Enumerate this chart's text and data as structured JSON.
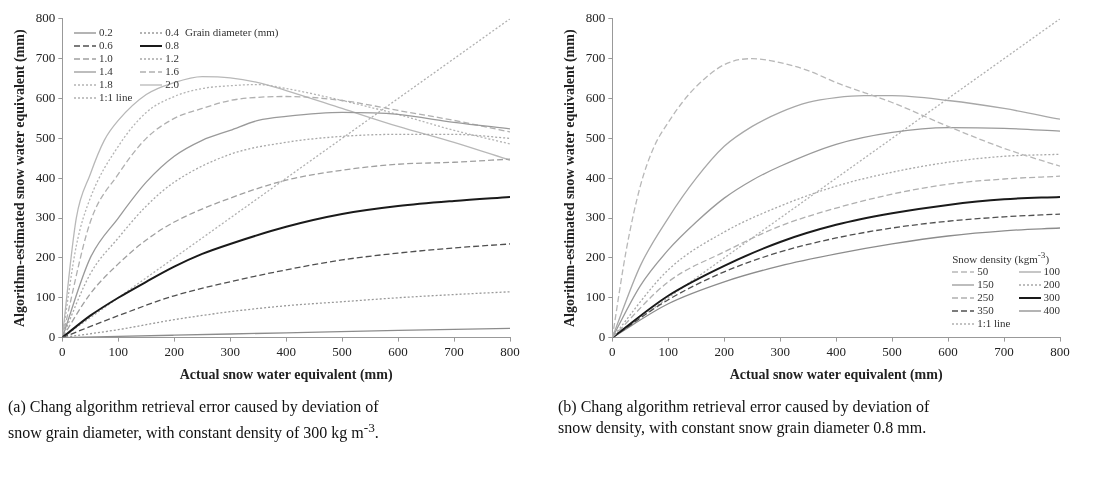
{
  "chart_data": [
    {
      "type": "line",
      "xlabel": "Actual snow water equivalent (mm)",
      "ylabel": "Algorithm-estimated snow water equivalent (mm)",
      "legend_title": "Grain diameter (mm)",
      "legend": "top left",
      "grid": false,
      "marker": "none",
      "xlim": [
        0,
        800
      ],
      "xticks": [
        0,
        100,
        200,
        300,
        400,
        500,
        600,
        700,
        800
      ],
      "ylim": [
        0,
        800
      ],
      "yticks": [
        0,
        100,
        200,
        300,
        400,
        500,
        600,
        700,
        800
      ],
      "annotations": [
        "(a) Chang algorithm retrieval error caused by deviation of snow grain diameter, with constant density of 300 kg m$^{-3}$."
      ],
      "series": [
        {
          "name": "0.2",
          "color": "#8c8c8c",
          "line_style": "solid",
          "x": [
            0,
            100,
            200,
            400,
            600,
            800
          ],
          "values": [
            0,
            3,
            6,
            12,
            18,
            23
          ]
        },
        {
          "name": "0.4",
          "color": "#9a9a9a",
          "line_style": "dotted",
          "x": [
            0,
            100,
            200,
            300,
            400,
            500,
            600,
            700,
            800
          ],
          "values": [
            0,
            20,
            45,
            65,
            80,
            90,
            100,
            108,
            115
          ]
        },
        {
          "name": "0.6",
          "color": "#505050",
          "line_style": "dashed",
          "x": [
            0,
            100,
            200,
            300,
            400,
            500,
            600,
            700,
            800
          ],
          "values": [
            0,
            55,
            105,
            140,
            170,
            195,
            212,
            225,
            235
          ]
        },
        {
          "name": "0.8",
          "color": "#1a1a1a",
          "line_style": "solid",
          "x": [
            0,
            50,
            100,
            150,
            200,
            250,
            300,
            400,
            500,
            600,
            700,
            800
          ],
          "values": [
            0,
            55,
            100,
            140,
            178,
            210,
            235,
            278,
            310,
            330,
            343,
            353
          ]
        },
        {
          "name": "1.0",
          "color": "#a0a0a0",
          "line_style": "dashed",
          "x": [
            0,
            50,
            100,
            150,
            200,
            300,
            400,
            500,
            600,
            700,
            800
          ],
          "values": [
            0,
            110,
            185,
            245,
            290,
            350,
            395,
            420,
            435,
            440,
            448
          ]
        },
        {
          "name": "1.2",
          "color": "#a8a8a8",
          "line_style": "dotted",
          "x": [
            0,
            50,
            100,
            150,
            200,
            300,
            400,
            500,
            600,
            700,
            800
          ],
          "values": [
            0,
            160,
            250,
            330,
            390,
            460,
            490,
            505,
            510,
            510,
            500
          ]
        },
        {
          "name": "1.4",
          "color": "#9a9a9a",
          "line_style": "solid",
          "x": [
            0,
            50,
            100,
            150,
            200,
            250,
            300,
            350,
            400,
            500,
            600,
            700,
            800
          ],
          "values": [
            0,
            200,
            300,
            390,
            455,
            495,
            520,
            545,
            555,
            565,
            560,
            540,
            524
          ]
        },
        {
          "name": "1.6",
          "color": "#b0b0b0",
          "line_style": "dashed",
          "x": [
            0,
            50,
            100,
            150,
            200,
            250,
            300,
            350,
            400,
            500,
            600,
            700,
            800
          ],
          "values": [
            0,
            290,
            410,
            500,
            550,
            575,
            595,
            603,
            605,
            595,
            570,
            545,
            516
          ]
        },
        {
          "name": "1.8",
          "color": "#b4b4b4",
          "line_style": "dotted",
          "x": [
            0,
            25,
            50,
            100,
            150,
            200,
            250,
            300,
            350,
            400,
            500,
            600,
            700,
            800
          ],
          "values": [
            0,
            230,
            350,
            480,
            565,
            605,
            625,
            632,
            635,
            625,
            595,
            560,
            520,
            486
          ]
        },
        {
          "name": "2.0",
          "color": "#b8b8b8",
          "line_style": "solid",
          "x": [
            0,
            25,
            50,
            75,
            100,
            150,
            200,
            250,
            300,
            350,
            400,
            500,
            600,
            700,
            800
          ],
          "values": [
            0,
            300,
            410,
            495,
            545,
            610,
            640,
            655,
            652,
            640,
            620,
            575,
            530,
            490,
            445
          ]
        },
        {
          "name": "1:1 line",
          "color": "#b0b0b0",
          "line_style": "dotted",
          "x": [
            0,
            800
          ],
          "values": [
            0,
            800
          ]
        }
      ]
    },
    {
      "type": "line",
      "xlabel": "Actual snow water equivalent (mm)",
      "ylabel": "Algorithm-estimated snow water equivalent (mm)",
      "legend_title": "Snow density (kgm$^{-3}$)",
      "legend": "bottom right",
      "grid": false,
      "marker": "none",
      "xlim": [
        0,
        800
      ],
      "xticks": [
        0,
        100,
        200,
        300,
        400,
        500,
        600,
        700,
        800
      ],
      "ylim": [
        0,
        800
      ],
      "yticks": [
        0,
        100,
        200,
        300,
        400,
        500,
        600,
        700,
        800
      ],
      "annotations": [
        "(b) Chang algorithm retrieval error caused by deviation of snow density, with constant snow grain diameter 0.8 mm."
      ],
      "series": [
        {
          "name": "50",
          "color": "#b8b8b8",
          "line_style": "dashed",
          "x": [
            0,
            25,
            50,
            75,
            100,
            125,
            150,
            200,
            250,
            300,
            350,
            400,
            500,
            600,
            700,
            800
          ],
          "values": [
            0,
            220,
            380,
            480,
            540,
            590,
            630,
            685,
            700,
            690,
            670,
            640,
            590,
            530,
            475,
            430
          ]
        },
        {
          "name": "100",
          "color": "#a8a8a8",
          "line_style": "solid",
          "x": [
            0,
            50,
            100,
            150,
            200,
            250,
            300,
            350,
            400,
            450,
            500,
            600,
            700,
            800
          ],
          "values": [
            0,
            180,
            300,
            400,
            480,
            530,
            565,
            590,
            602,
            607,
            607,
            595,
            575,
            548
          ]
        },
        {
          "name": "150",
          "color": "#9a9a9a",
          "line_style": "solid",
          "x": [
            0,
            50,
            100,
            150,
            200,
            250,
            300,
            400,
            500,
            600,
            700,
            800
          ],
          "values": [
            0,
            130,
            220,
            290,
            350,
            395,
            430,
            485,
            515,
            527,
            525,
            518
          ]
        },
        {
          "name": "200",
          "color": "#a8a8a8",
          "line_style": "dotted",
          "x": [
            0,
            100,
            200,
            300,
            400,
            500,
            600,
            700,
            800
          ],
          "values": [
            0,
            170,
            265,
            330,
            380,
            415,
            440,
            455,
            460
          ]
        },
        {
          "name": "250",
          "color": "#b0b0b0",
          "line_style": "dashed",
          "x": [
            0,
            100,
            200,
            300,
            400,
            500,
            600,
            700,
            800
          ],
          "values": [
            0,
            140,
            215,
            280,
            325,
            360,
            385,
            398,
            405
          ]
        },
        {
          "name": "300",
          "color": "#1a1a1a",
          "line_style": "solid",
          "x": [
            0,
            100,
            200,
            300,
            400,
            500,
            600,
            700,
            800
          ],
          "values": [
            0,
            105,
            180,
            240,
            283,
            312,
            333,
            347,
            353
          ]
        },
        {
          "name": "350",
          "color": "#505050",
          "line_style": "dashed",
          "x": [
            0,
            100,
            200,
            300,
            400,
            500,
            600,
            700,
            800
          ],
          "values": [
            0,
            95,
            165,
            215,
            250,
            275,
            292,
            303,
            310
          ]
        },
        {
          "name": "400",
          "color": "#8c8c8c",
          "line_style": "solid",
          "x": [
            0,
            100,
            200,
            300,
            400,
            500,
            600,
            700,
            800
          ],
          "values": [
            0,
            85,
            140,
            180,
            210,
            235,
            255,
            268,
            275
          ]
        },
        {
          "name": "1:1 line",
          "color": "#b0b0b0",
          "line_style": "dotted",
          "x": [
            0,
            800
          ],
          "values": [
            0,
            800
          ]
        }
      ]
    }
  ]
}
